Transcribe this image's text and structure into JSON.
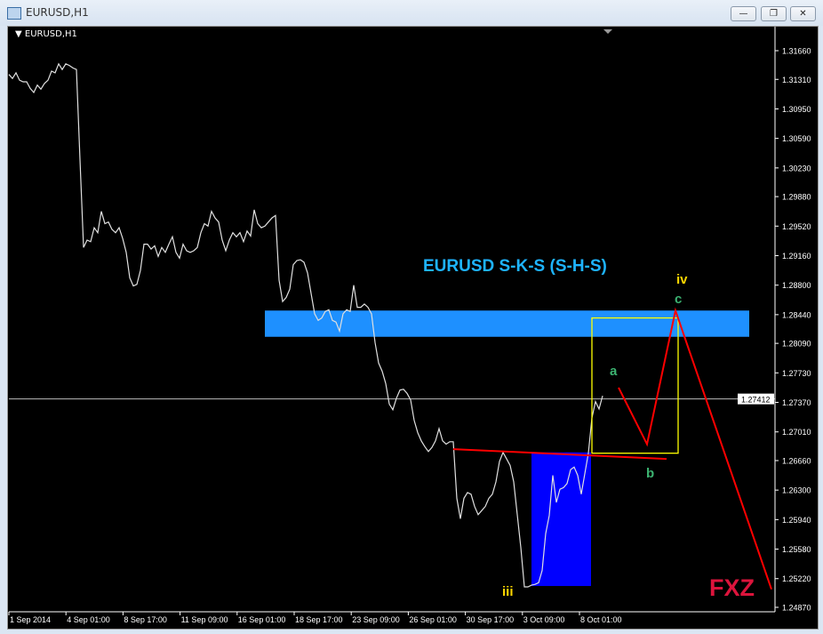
{
  "window": {
    "title": "EURUSD,H1",
    "buttons": [
      "minimize",
      "restore",
      "close"
    ]
  },
  "chart_header": {
    "symbol_label": "EURUSD,H1"
  },
  "colors": {
    "price_line": "#e0e0e0",
    "resistance_zone": "#1e90ff",
    "reversal_zone": "#0000ff",
    "projection": "#ff0000",
    "box": "#ffff00",
    "title": "#1eb4ff",
    "wave_green": "#3cb371",
    "wave_yellow": "#ffd700",
    "logo": "#dc143c"
  },
  "chart_data": {
    "type": "line",
    "title": "EURUSD S-K-S (S-H-S)",
    "ylim": [
      1.2487,
      1.3166
    ],
    "y_ticks": [
      "1.31660",
      "1.31310",
      "1.30950",
      "1.30590",
      "1.30230",
      "1.29880",
      "1.29520",
      "1.29160",
      "1.28800",
      "1.28440",
      "1.28090",
      "1.27730",
      "1.27370",
      "1.27010",
      "1.26660",
      "1.26300",
      "1.25940",
      "1.25580",
      "1.25220",
      "1.24870"
    ],
    "x_ticks": [
      "1 Sep 2014",
      "4 Sep 01:00",
      "8 Sep 17:00",
      "11 Sep 09:00",
      "16 Sep 01:00",
      "18 Sep 17:00",
      "23 Sep 09:00",
      "26 Sep 01:00",
      "30 Sep 17:00",
      "3 Oct 09:00",
      "8 Oct 01:00"
    ],
    "current_price": "1.27412",
    "grid": false,
    "series": [
      {
        "values": [
          1.3137,
          1.3132,
          1.3139,
          1.313,
          1.3128,
          1.3128,
          1.312,
          1.3115,
          1.3124,
          1.3119,
          1.3126,
          1.313,
          1.3141,
          1.3139,
          1.315,
          1.3143,
          1.315,
          1.3148,
          1.3145,
          1.3143,
          1.3033,
          1.2926,
          1.2935,
          1.2933,
          1.295,
          1.2944,
          1.297,
          1.2955,
          1.2957,
          1.2948,
          1.2944,
          1.295,
          1.2937,
          1.292,
          1.2889,
          1.2879,
          1.2881,
          1.2898,
          1.293,
          1.293,
          1.2924,
          1.2928,
          1.2915,
          1.2926,
          1.292,
          1.293,
          1.2939,
          1.292,
          1.2913,
          1.293,
          1.2922,
          1.292,
          1.2922,
          1.2926,
          1.2944,
          1.2955,
          1.2952,
          1.297,
          1.2962,
          1.2957,
          1.2935,
          1.2922,
          1.2935,
          1.2944,
          1.2939,
          1.2944,
          1.2933,
          1.2946,
          1.294,
          1.2972,
          1.2955,
          1.295,
          1.2952,
          1.2957,
          1.2962,
          1.2965,
          1.2886,
          1.286,
          1.2865,
          1.2875,
          1.2905,
          1.291,
          1.2911,
          1.2908,
          1.2895,
          1.287,
          1.2845,
          1.2837,
          1.284,
          1.2848,
          1.285,
          1.2837,
          1.2835,
          1.2824,
          1.2845,
          1.285,
          1.2848,
          1.288,
          1.2853,
          1.2853,
          1.2857,
          1.2853,
          1.2845,
          1.281,
          1.2785,
          1.2775,
          1.276,
          1.2735,
          1.2728,
          1.2742,
          1.2752,
          1.2753,
          1.2748,
          1.274,
          1.2715,
          1.27,
          1.269,
          1.2683,
          1.2677,
          1.2682,
          1.269,
          1.2705,
          1.269,
          1.2686,
          1.2689,
          1.2689,
          1.262,
          1.2595,
          1.262,
          1.2627,
          1.2625,
          1.261,
          1.26,
          1.2605,
          1.261,
          1.262,
          1.2625,
          1.264,
          1.2665,
          1.2676,
          1.2668,
          1.266,
          1.264,
          1.26,
          1.256,
          1.2512,
          1.2512,
          1.2514,
          1.2515,
          1.2517,
          1.2532,
          1.2577,
          1.2599,
          1.2648,
          1.2615,
          1.2631,
          1.2633,
          1.2638,
          1.2655,
          1.2658,
          1.2648,
          1.2625,
          1.265,
          1.2675,
          1.2718,
          1.2738,
          1.2729,
          1.2745
        ]
      }
    ],
    "annotations": {
      "resistance_zone": {
        "price_top": 1.2849,
        "price_bottom": 1.2817
      },
      "reversal_zone": {
        "price_top": 1.2676,
        "price_bottom": 1.2513
      },
      "neckline": {
        "price_start": 1.268,
        "price_end": 1.2668
      },
      "target_box": {
        "price_top": 1.284,
        "price_bottom": 1.2675
      },
      "projection_prices": [
        1.2755,
        1.2686,
        1.2849,
        1.2509
      ],
      "labels": {
        "a": "a",
        "b": "b",
        "c": "c",
        "iv": "iv",
        "iii": "iii"
      },
      "logo": "FXZ"
    }
  }
}
